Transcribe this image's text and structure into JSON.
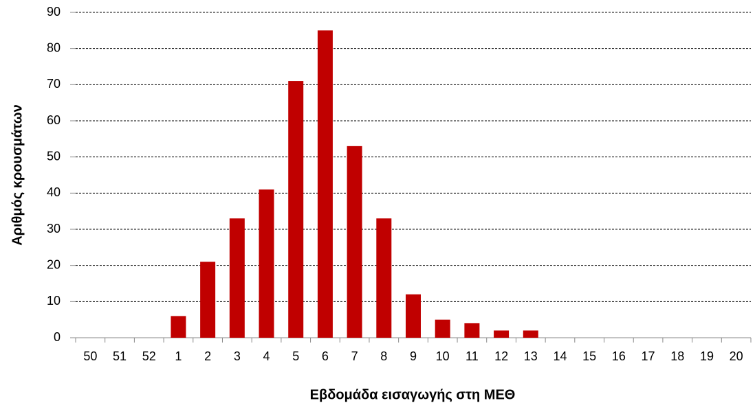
{
  "chart_data": {
    "type": "bar",
    "ylabel": "Αριθμός κρουσμάτων",
    "xlabel": "Εβδομάδα εισαγωγής στη ΜΕΘ",
    "categories": [
      "50",
      "51",
      "52",
      "1",
      "2",
      "3",
      "4",
      "5",
      "6",
      "7",
      "8",
      "9",
      "10",
      "11",
      "12",
      "13",
      "14",
      "15",
      "16",
      "17",
      "18",
      "19",
      "20"
    ],
    "values": [
      0,
      0,
      0,
      6,
      21,
      33,
      41,
      71,
      85,
      53,
      33,
      12,
      5,
      4,
      2,
      2,
      0,
      0,
      0,
      0,
      0,
      0,
      0
    ],
    "color": "#c00000",
    "ylim": [
      0,
      90
    ],
    "yticks": [
      0,
      10,
      20,
      30,
      40,
      50,
      60,
      70,
      80,
      90
    ],
    "grid": true
  }
}
